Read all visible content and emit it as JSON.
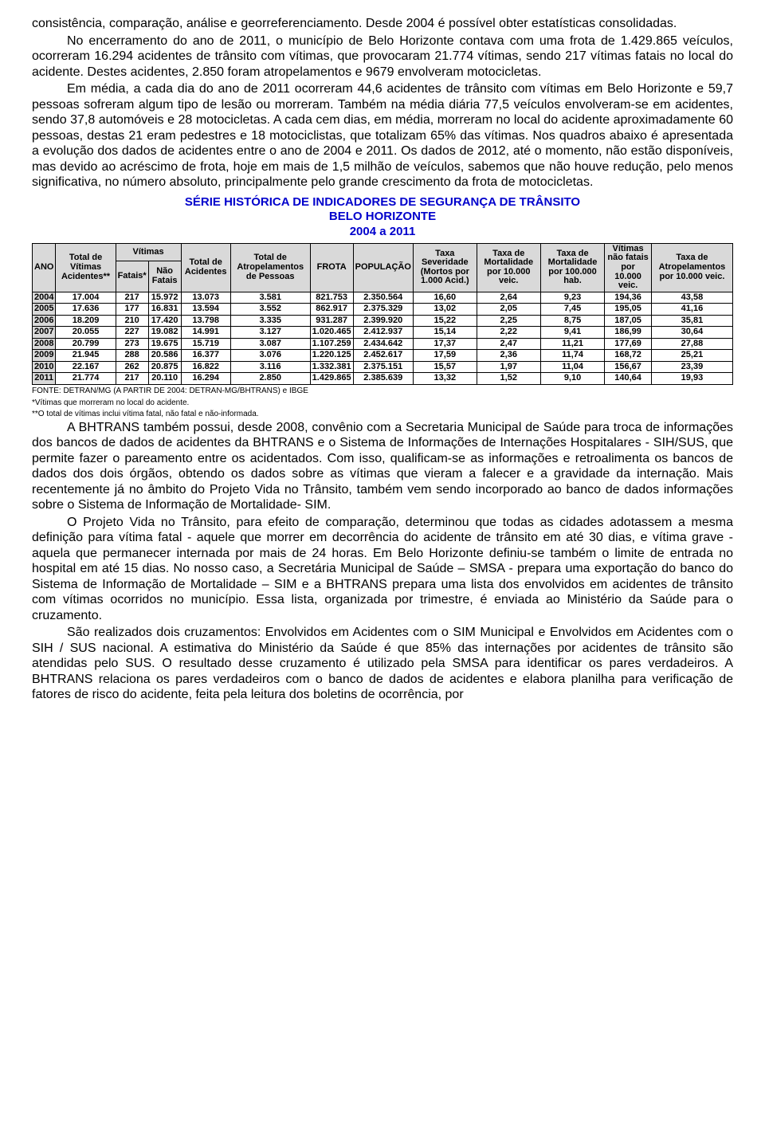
{
  "paragraphs": {
    "p1": "consistência, comparação, análise e georreferenciamento. Desde 2004 é possível obter estatísticas consolidadas.",
    "p2": "No encerramento do ano de 2011, o município de Belo Horizonte contava com uma frota de 1.429.865 veículos, ocorreram 16.294 acidentes de trânsito com vítimas, que provocaram 21.774 vítimas, sendo 217 vítimas fatais no local do acidente. Destes acidentes, 2.850 foram atropelamentos e 9679 envolveram motocicletas.",
    "p3": "Em média, a cada dia do ano de 2011 ocorreram 44,6 acidentes de trânsito com vítimas em Belo Horizonte e 59,7 pessoas sofreram algum tipo de lesão ou morreram. Também na média diária 77,5 veículos envolveram-se em acidentes, sendo 37,8 automóveis e 28 motocicletas. A cada cem dias, em média, morreram no local do acidente aproximadamente 60 pessoas, destas 21 eram pedestres e 18 motociclistas, que totalizam 65% das vítimas. Nos quadros abaixo é apresentada a evolução dos dados de acidentes entre o ano de 2004 e 2011. Os dados de 2012, até o momento, não estão disponíveis, mas devido ao acréscimo de frota, hoje em mais de 1,5 milhão de veículos, sabemos que não houve redução, pelo menos significativa, no número absoluto, principalmente pelo grande crescimento da frota de motocicletas.",
    "p4": "A BHTRANS também possui, desde 2008, convênio com a Secretaria Municipal de Saúde para troca de informações dos bancos de dados de acidentes da BHTRANS e o Sistema de Informações de Internações Hospitalares - SIH/SUS, que permite fazer o pareamento entre os acidentados. Com isso, qualificam-se as informações e retroalimenta os bancos de dados dos dois órgãos, obtendo os dados sobre as vítimas que vieram a falecer e a gravidade da internação. Mais recentemente já no âmbito do Projeto Vida no Trânsito, também vem sendo incorporado ao banco de dados informações sobre o Sistema de Informação de Mortalidade- SIM.",
    "p5": "O Projeto Vida no Trânsito, para efeito de comparação, determinou que todas as cidades adotassem a mesma definição para vítima fatal - aquele que morrer em decorrência do acidente de trânsito em até 30 dias, e vítima grave - aquela que permanecer internada por mais de 24 horas. Em Belo Horizonte definiu-se também o limite de entrada no hospital em até 15 dias. No nosso caso, a Secretária Municipal de Saúde – SMSA - prepara uma exportação do banco do Sistema de Informação de Mortalidade – SIM e a BHTRANS prepara uma lista dos envolvidos em acidentes de trânsito com vítimas ocorridos no município. Essa lista, organizada por trimestre, é enviada ao Ministério da Saúde para o cruzamento.",
    "p6": "São realizados dois cruzamentos: Envolvidos em Acidentes com o SIM Municipal e Envolvidos em Acidentes com o SIH / SUS nacional. A estimativa do Ministério da Saúde é que 85% das internações por acidentes de trânsito são atendidas pelo SUS. O resultado desse cruzamento é utilizado pela SMSA para identificar os pares verdadeiros. A BHTRANS relaciona os pares verdadeiros com o banco de dados de acidentes e elabora planilha para verificação de fatores de risco do acidente, feita pela leitura dos boletins de ocorrência, por"
  },
  "table": {
    "title_line1": "SÉRIE HISTÓRICA DE INDICADORES DE SEGURANÇA DE TRÂNSITO",
    "title_line2": "BELO HORIZONTE",
    "title_line3": "2004 a 2011",
    "headers": {
      "ano": "ANO",
      "total_vitimas": "Total de Vítimas Acidentes**",
      "vitimas_group": "Vítimas",
      "fatais": "Fatais*",
      "nao_fatais": "Não Fatais",
      "total_acidentes": "Total de Acidentes",
      "total_atrop": "Total de Atropelamentos de Pessoas",
      "frota": "FROTA",
      "populacao": "POPULAÇÃO",
      "taxa_sev": "Taxa Severidade (Mortos por 1.000 Acid.)",
      "taxa_mort": "Taxa de Mortalidade por 10.000 veic.",
      "taxa_mort_hab": "Taxa de Mortalidade por 100.000 hab.",
      "vit_nao_fatais": "Vítimas não fatais por 10.000 veic.",
      "taxa_atrop": "Taxa de Atropelamentos por 10.000 veic."
    },
    "rows": [
      [
        "2004",
        "17.004",
        "217",
        "15.972",
        "13.073",
        "3.581",
        "821.753",
        "2.350.564",
        "16,60",
        "2,64",
        "9,23",
        "194,36",
        "43,58"
      ],
      [
        "2005",
        "17.636",
        "177",
        "16.831",
        "13.594",
        "3.552",
        "862.917",
        "2.375.329",
        "13,02",
        "2,05",
        "7,45",
        "195,05",
        "41,16"
      ],
      [
        "2006",
        "18.209",
        "210",
        "17.420",
        "13.798",
        "3.335",
        "931.287",
        "2.399.920",
        "15,22",
        "2,25",
        "8,75",
        "187,05",
        "35,81"
      ],
      [
        "2007",
        "20.055",
        "227",
        "19.082",
        "14.991",
        "3.127",
        "1.020.465",
        "2.412.937",
        "15,14",
        "2,22",
        "9,41",
        "186,99",
        "30,64"
      ],
      [
        "2008",
        "20.799",
        "273",
        "19.675",
        "15.719",
        "3.087",
        "1.107.259",
        "2.434.642",
        "17,37",
        "2,47",
        "11,21",
        "177,69",
        "27,88"
      ],
      [
        "2009",
        "21.945",
        "288",
        "20.586",
        "16.377",
        "3.076",
        "1.220.125",
        "2.452.617",
        "17,59",
        "2,36",
        "11,74",
        "168,72",
        "25,21"
      ],
      [
        "2010",
        "22.167",
        "262",
        "20.875",
        "16.822",
        "3.116",
        "1.332.381",
        "2.375.151",
        "15,57",
        "1,97",
        "11,04",
        "156,67",
        "23,39"
      ],
      [
        "2011",
        "21.774",
        "217",
        "20.110",
        "16.294",
        "2.850",
        "1.429.865",
        "2.385.639",
        "13,32",
        "1,52",
        "9,10",
        "140,64",
        "19,93"
      ]
    ],
    "footnotes": {
      "f1": "FONTE: DETRAN/MG (A PARTIR DE 2004: DETRAN-MG/BHTRANS) e IBGE",
      "f2": "*Vítimas que morreram no local do acidente.",
      "f3": "**O total de vítimas inclui vítima fatal, não fatal e não-informada."
    },
    "style": {
      "header_bg": "#d9d9d9",
      "border_color": "#000000",
      "title_color": "#0000cc",
      "font_size_pt": 11
    }
  }
}
